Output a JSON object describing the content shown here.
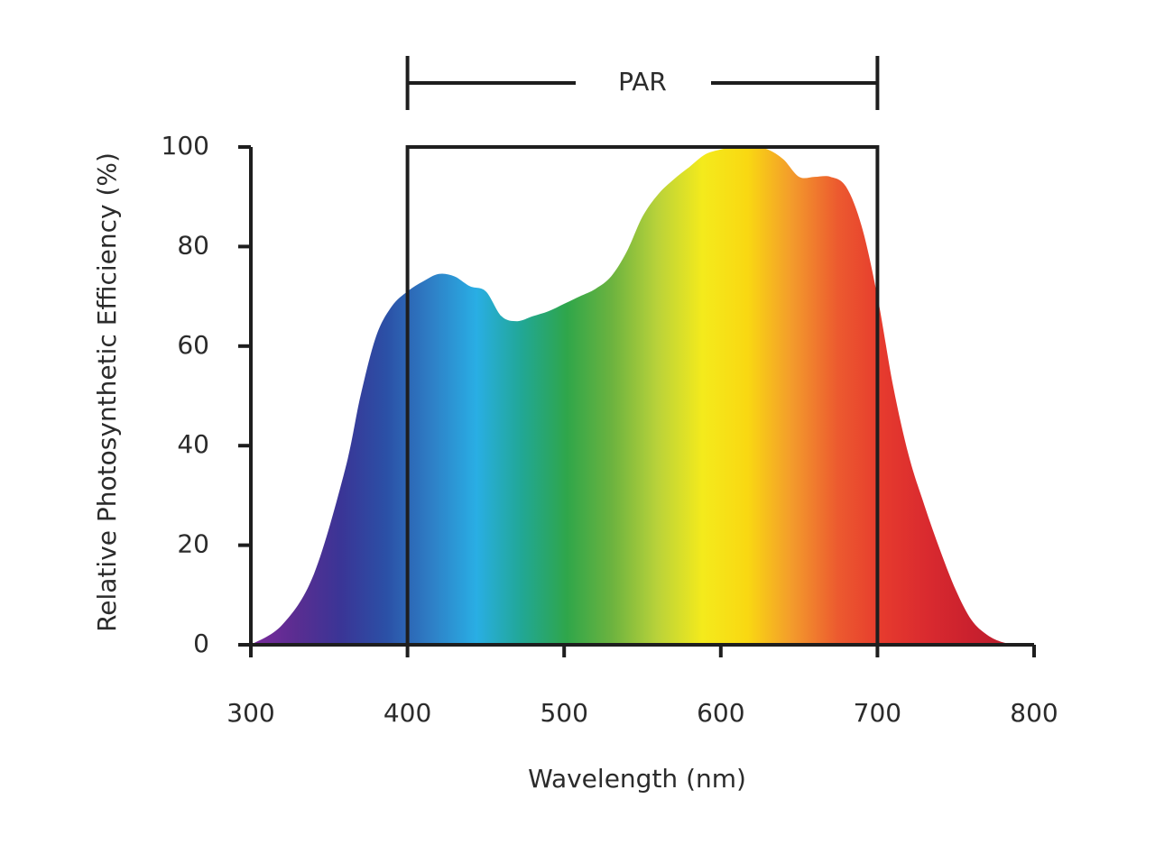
{
  "chart_data": {
    "type": "area",
    "title": "",
    "xlabel": "Wavelength (nm)",
    "ylabel": "Relative Photosynthetic Efficiency (%)",
    "xlim": [
      300,
      800
    ],
    "ylim": [
      0,
      100
    ],
    "xticks": [
      300,
      400,
      500,
      600,
      700,
      800
    ],
    "yticks": [
      0,
      20,
      40,
      60,
      80,
      100
    ],
    "grid": false,
    "series": [
      {
        "x": [
          300,
          320,
          340,
          360,
          370,
          380,
          390,
          400,
          410,
          420,
          430,
          440,
          450,
          460,
          470,
          480,
          490,
          500,
          510,
          520,
          530,
          540,
          550,
          560,
          570,
          580,
          590,
          600,
          610,
          620,
          630,
          640,
          650,
          660,
          670,
          680,
          690,
          700,
          710,
          720,
          730,
          740,
          750,
          760,
          770,
          780,
          790
        ],
        "y": [
          0,
          4,
          14,
          35,
          50,
          62,
          68,
          71,
          73,
          74.5,
          74,
          72,
          71,
          66,
          65,
          66,
          67,
          68.5,
          70,
          71.5,
          74,
          79,
          86,
          90.5,
          93.5,
          96,
          98.5,
          99.5,
          100,
          100,
          99.5,
          97.5,
          94,
          94,
          94,
          92,
          84,
          70,
          52,
          38,
          28,
          19,
          11,
          5,
          2,
          0.5,
          0
        ]
      }
    ],
    "spectrum_colors": [
      "#7b2a9c",
      "#5a2d91",
      "#3a3596",
      "#2b50a6",
      "#2e7fc6",
      "#29aee4",
      "#21a795",
      "#2fa64a",
      "#6cb33f",
      "#b9d23a",
      "#f4ea1c",
      "#f9d812",
      "#f39a2c",
      "#ec5a2f",
      "#e63a2e",
      "#d92a2f",
      "#c9202e",
      "#b61e2c"
    ],
    "annotations": [
      {
        "label": "PAR",
        "x_range": [
          400,
          700
        ]
      }
    ]
  }
}
